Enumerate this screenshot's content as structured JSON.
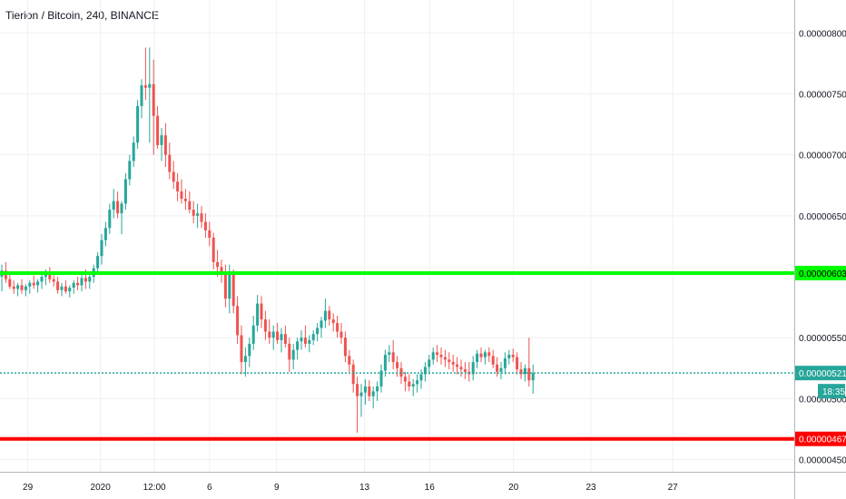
{
  "title": "Tierion / Bitcoin, 240, BINANCE",
  "colors": {
    "up": "#26a69a",
    "down": "#ef5350",
    "support_line": "#00ff00",
    "resistance_line": "#ff0000",
    "last_price_line": "#26a69a",
    "grid": "#eef0f3",
    "axis_text": "#131722"
  },
  "chart_data": {
    "type": "candlestick",
    "symbol": "Tierion / Bitcoin",
    "interval": "240",
    "exchange": "BINANCE",
    "y_axis": {
      "ticks": [
        "0.00000800",
        "0.00000750",
        "0.00000700",
        "0.00000650",
        "0.00000550",
        "0.00000500",
        "0.00000450"
      ],
      "tick_values": [
        8.0,
        7.5,
        7.0,
        6.5,
        5.5,
        5.0,
        4.5
      ],
      "range": [
        4.4,
        8.27
      ],
      "unit_scale": "x1e-6"
    },
    "x_axis": {
      "ticks": [
        "29",
        "2020",
        "12:00",
        "6",
        "9",
        "13",
        "16",
        "20",
        "23",
        "27"
      ],
      "tick_index": [
        6.5,
        24.7,
        38.2,
        52.0,
        68.8,
        90.8,
        107.1,
        128.1,
        147.5,
        168.0
      ]
    },
    "horizontal_lines": [
      {
        "label": "0.00000603",
        "value": 6.03,
        "color": "#00ff00"
      },
      {
        "label": "0.00000467",
        "value": 4.67,
        "color": "#ff0000"
      }
    ],
    "last_price": {
      "label": "0.00000521",
      "value": 5.21,
      "countdown": "18:35"
    },
    "candles": [
      [
        6.0,
        6.1,
        5.88,
        6.05
      ],
      [
        6.05,
        6.12,
        5.95,
        5.98
      ],
      [
        5.98,
        6.02,
        5.9,
        5.92
      ],
      [
        5.92,
        5.97,
        5.86,
        5.9
      ],
      [
        5.9,
        5.95,
        5.84,
        5.93
      ],
      [
        5.93,
        5.98,
        5.86,
        5.89
      ],
      [
        5.89,
        5.94,
        5.84,
        5.92
      ],
      [
        5.92,
        5.97,
        5.86,
        5.95
      ],
      [
        5.95,
        6.01,
        5.9,
        5.93
      ],
      [
        5.93,
        5.98,
        5.87,
        5.96
      ],
      [
        5.96,
        6.03,
        5.9,
        6.0
      ],
      [
        6.0,
        6.06,
        5.93,
        6.03
      ],
      [
        6.03,
        6.08,
        5.95,
        5.98
      ],
      [
        5.98,
        6.03,
        5.92,
        5.96
      ],
      [
        5.96,
        6.0,
        5.86,
        5.89
      ],
      [
        5.89,
        5.95,
        5.84,
        5.92
      ],
      [
        5.92,
        5.97,
        5.86,
        5.88
      ],
      [
        5.88,
        5.93,
        5.83,
        5.91
      ],
      [
        5.91,
        5.97,
        5.86,
        5.95
      ],
      [
        5.95,
        6.0,
        5.89,
        5.93
      ],
      [
        5.93,
        6.02,
        5.88,
        5.99
      ],
      [
        5.99,
        6.06,
        5.9,
        5.96
      ],
      [
        5.96,
        6.02,
        5.9,
        6.0
      ],
      [
        6.0,
        6.1,
        5.95,
        6.07
      ],
      [
        6.07,
        6.2,
        6.02,
        6.17
      ],
      [
        6.17,
        6.35,
        6.1,
        6.3
      ],
      [
        6.3,
        6.45,
        6.25,
        6.4
      ],
      [
        6.4,
        6.6,
        6.35,
        6.55
      ],
      [
        6.55,
        6.72,
        6.48,
        6.62
      ],
      [
        6.62,
        6.7,
        6.48,
        6.52
      ],
      [
        6.52,
        6.62,
        6.35,
        6.6
      ],
      [
        6.6,
        6.85,
        6.55,
        6.8
      ],
      [
        6.8,
        7.0,
        6.75,
        6.95
      ],
      [
        6.95,
        7.15,
        6.9,
        7.1
      ],
      [
        7.1,
        7.45,
        7.05,
        7.4
      ],
      [
        7.4,
        7.62,
        7.3,
        7.57
      ],
      [
        7.57,
        7.88,
        7.45,
        7.55
      ],
      [
        7.55,
        7.88,
        7.1,
        7.58
      ],
      [
        7.58,
        7.78,
        7.0,
        7.32
      ],
      [
        7.32,
        7.4,
        7.05,
        7.08
      ],
      [
        7.08,
        7.22,
        6.95,
        7.16
      ],
      [
        7.16,
        7.26,
        6.9,
        7.0
      ],
      [
        7.0,
        7.1,
        6.8,
        6.86
      ],
      [
        6.86,
        6.95,
        6.72,
        6.78
      ],
      [
        6.78,
        6.85,
        6.62,
        6.7
      ],
      [
        6.7,
        6.8,
        6.6,
        6.64
      ],
      [
        6.64,
        6.72,
        6.55,
        6.62
      ],
      [
        6.62,
        6.7,
        6.52,
        6.55
      ],
      [
        6.55,
        6.62,
        6.44,
        6.5
      ],
      [
        6.5,
        6.6,
        6.4,
        6.52
      ],
      [
        6.52,
        6.58,
        6.4,
        6.45
      ],
      [
        6.45,
        6.52,
        6.32,
        6.38
      ],
      [
        6.38,
        6.45,
        6.25,
        6.32
      ],
      [
        6.32,
        6.36,
        6.06,
        6.12
      ],
      [
        6.12,
        6.22,
        6.0,
        6.08
      ],
      [
        6.08,
        6.14,
        5.95,
        6.02
      ],
      [
        6.02,
        6.1,
        5.75,
        5.82
      ],
      [
        5.82,
        6.1,
        5.7,
        6.02
      ],
      [
        6.02,
        6.06,
        5.7,
        5.76
      ],
      [
        5.76,
        5.84,
        5.45,
        5.52
      ],
      [
        5.52,
        5.6,
        5.2,
        5.3
      ],
      [
        5.3,
        5.42,
        5.18,
        5.35
      ],
      [
        5.35,
        5.5,
        5.26,
        5.45
      ],
      [
        5.45,
        5.68,
        5.4,
        5.6
      ],
      [
        5.6,
        5.85,
        5.55,
        5.78
      ],
      [
        5.78,
        5.84,
        5.58,
        5.65
      ],
      [
        5.65,
        5.72,
        5.48,
        5.55
      ],
      [
        5.55,
        5.65,
        5.45,
        5.5
      ],
      [
        5.5,
        5.6,
        5.4,
        5.55
      ],
      [
        5.55,
        5.62,
        5.45,
        5.48
      ],
      [
        5.48,
        5.58,
        5.38,
        5.53
      ],
      [
        5.53,
        5.6,
        5.42,
        5.45
      ],
      [
        5.45,
        5.5,
        5.22,
        5.32
      ],
      [
        5.32,
        5.45,
        5.24,
        5.4
      ],
      [
        5.4,
        5.5,
        5.32,
        5.47
      ],
      [
        5.47,
        5.56,
        5.4,
        5.5
      ],
      [
        5.5,
        5.6,
        5.42,
        5.45
      ],
      [
        5.45,
        5.52,
        5.38,
        5.48
      ],
      [
        5.48,
        5.56,
        5.44,
        5.53
      ],
      [
        5.53,
        5.62,
        5.47,
        5.58
      ],
      [
        5.58,
        5.67,
        5.5,
        5.64
      ],
      [
        5.64,
        5.82,
        5.58,
        5.72
      ],
      [
        5.72,
        5.76,
        5.6,
        5.65
      ],
      [
        5.65,
        5.7,
        5.55,
        5.62
      ],
      [
        5.62,
        5.68,
        5.5,
        5.55
      ],
      [
        5.55,
        5.62,
        5.45,
        5.5
      ],
      [
        5.5,
        5.55,
        5.3,
        5.35
      ],
      [
        5.35,
        5.4,
        5.22,
        5.28
      ],
      [
        5.28,
        5.32,
        5.05,
        5.12
      ],
      [
        5.12,
        5.18,
        4.72,
        5.02
      ],
      [
        5.02,
        5.12,
        4.85,
        5.05
      ],
      [
        5.05,
        5.16,
        4.95,
        5.1
      ],
      [
        5.1,
        5.15,
        4.98,
        5.02
      ],
      [
        5.02,
        5.1,
        4.92,
        5.06
      ],
      [
        5.06,
        5.14,
        4.98,
        5.1
      ],
      [
        5.1,
        5.28,
        5.05,
        5.23
      ],
      [
        5.23,
        5.4,
        5.18,
        5.36
      ],
      [
        5.36,
        5.44,
        5.3,
        5.38
      ],
      [
        5.38,
        5.48,
        5.24,
        5.3
      ],
      [
        5.3,
        5.35,
        5.18,
        5.25
      ],
      [
        5.25,
        5.3,
        5.12,
        5.18
      ],
      [
        5.18,
        5.22,
        5.06,
        5.14
      ],
      [
        5.14,
        5.2,
        5.06,
        5.1
      ],
      [
        5.1,
        5.16,
        5.02,
        5.12
      ],
      [
        5.12,
        5.2,
        5.05,
        5.15
      ],
      [
        5.15,
        5.24,
        5.08,
        5.2
      ],
      [
        5.2,
        5.3,
        5.14,
        5.26
      ],
      [
        5.26,
        5.36,
        5.2,
        5.32
      ],
      [
        5.32,
        5.42,
        5.28,
        5.38
      ],
      [
        5.38,
        5.44,
        5.3,
        5.36
      ],
      [
        5.36,
        5.42,
        5.28,
        5.34
      ],
      [
        5.34,
        5.4,
        5.26,
        5.32
      ],
      [
        5.32,
        5.38,
        5.24,
        5.3
      ],
      [
        5.3,
        5.36,
        5.22,
        5.28
      ],
      [
        5.28,
        5.34,
        5.2,
        5.26
      ],
      [
        5.26,
        5.32,
        5.18,
        5.24
      ],
      [
        5.24,
        5.3,
        5.16,
        5.22
      ],
      [
        5.22,
        5.3,
        5.14,
        5.2
      ],
      [
        5.2,
        5.35,
        5.15,
        5.3
      ],
      [
        5.3,
        5.4,
        5.25,
        5.37
      ],
      [
        5.37,
        5.42,
        5.3,
        5.34
      ],
      [
        5.34,
        5.4,
        5.28,
        5.38
      ],
      [
        5.38,
        5.42,
        5.3,
        5.35
      ],
      [
        5.35,
        5.4,
        5.25,
        5.28
      ],
      [
        5.28,
        5.34,
        5.18,
        5.22
      ],
      [
        5.22,
        5.3,
        5.16,
        5.25
      ],
      [
        5.25,
        5.38,
        5.2,
        5.33
      ],
      [
        5.33,
        5.4,
        5.28,
        5.36
      ],
      [
        5.36,
        5.41,
        5.3,
        5.34
      ],
      [
        5.34,
        5.38,
        5.2,
        5.24
      ],
      [
        5.24,
        5.3,
        5.16,
        5.2
      ],
      [
        5.2,
        5.28,
        5.14,
        5.25
      ],
      [
        5.25,
        5.5,
        5.1,
        5.15
      ],
      [
        5.15,
        5.28,
        5.04,
        5.21
      ]
    ]
  }
}
